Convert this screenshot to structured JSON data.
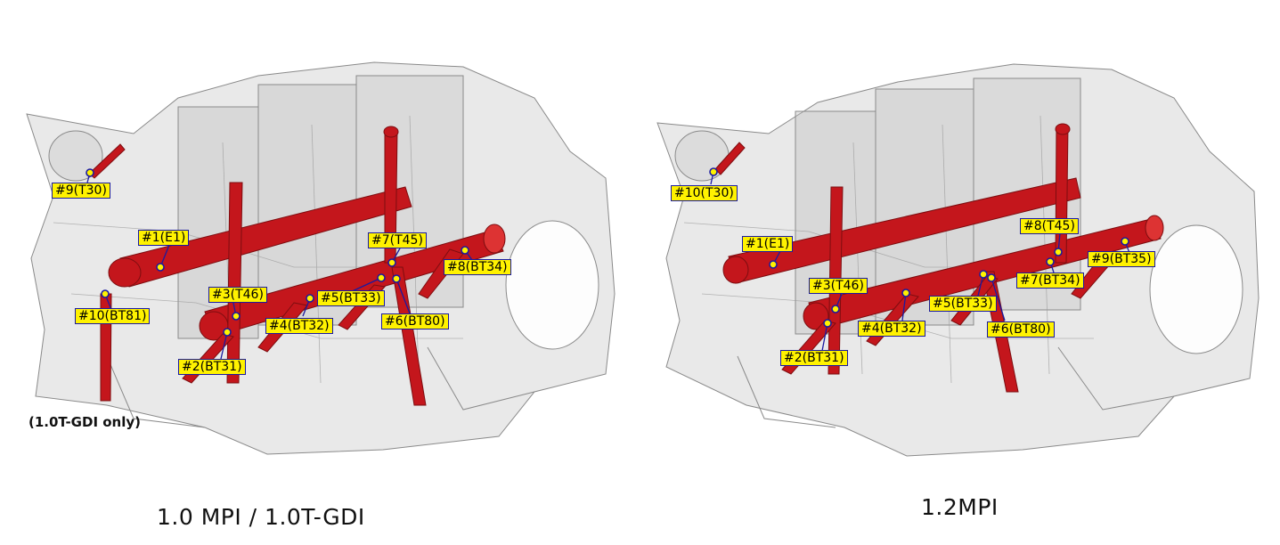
{
  "left_panel": {
    "caption": "1.0 MPI / 1.0T-GDI",
    "note": "(1.0T-GDI only)",
    "labels": [
      "#9(T30)",
      "#1(E1)",
      "#7(T45)",
      "#8(BT34)",
      "#10(BT81)",
      "#3(T46)",
      "#5(BT33)",
      "#6(BT80)",
      "#4(BT32)",
      "#2(BT31)"
    ]
  },
  "right_panel": {
    "caption": "1.2MPI",
    "labels": [
      "#10(T30)",
      "#1(E1)",
      "#8(T45)",
      "#9(BT35)",
      "#3(T46)",
      "#7(BT34)",
      "#5(BT33)",
      "#4(BT32)",
      "#6(BT80)",
      "#2(BT31)"
    ]
  },
  "colors": {
    "pipe": "#c4161c",
    "label_fill": "#fff200",
    "label_border": "#1a1aa0",
    "block": "#d9d9d9"
  }
}
